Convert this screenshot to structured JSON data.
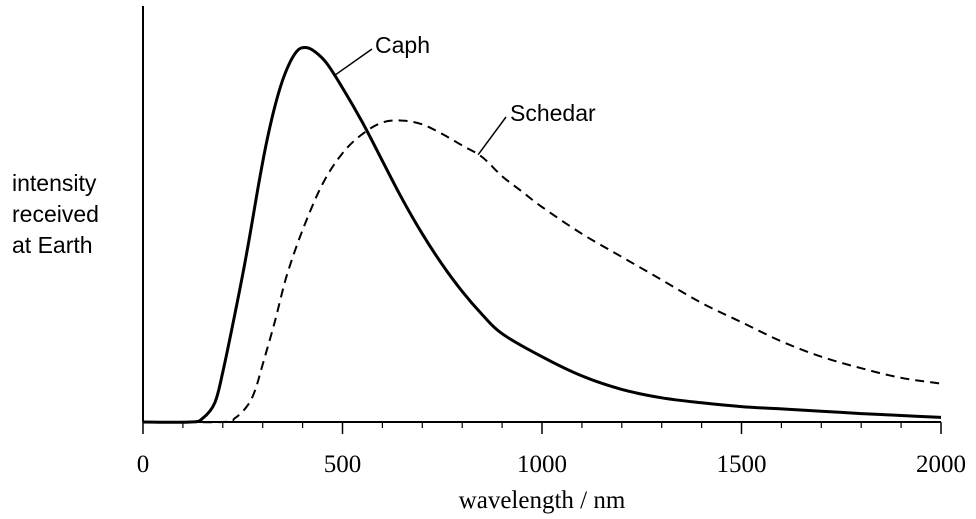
{
  "chart_data": {
    "type": "line",
    "xlabel": "wavelength / nm",
    "ylabel_lines": [
      "intensity",
      "received",
      "at Earth"
    ],
    "xlim": [
      0,
      2000
    ],
    "ylim": [
      0,
      1
    ],
    "xticks": [
      0,
      500,
      1000,
      1500,
      2000
    ],
    "xtick_labels": [
      "0",
      "500",
      "1000",
      "1500",
      "2000"
    ],
    "minor_tick_step": 100,
    "grid": false,
    "y_ticks_shown": false,
    "series": [
      {
        "name": "Caph",
        "style": "solid",
        "color": "#000000",
        "points": [
          [
            0,
            0
          ],
          [
            120,
            0
          ],
          [
            150,
            0.01
          ],
          [
            180,
            0.05
          ],
          [
            200,
            0.13
          ],
          [
            230,
            0.28
          ],
          [
            260,
            0.44
          ],
          [
            290,
            0.62
          ],
          [
            310,
            0.73
          ],
          [
            330,
            0.82
          ],
          [
            350,
            0.89
          ],
          [
            370,
            0.94
          ],
          [
            390,
            0.97
          ],
          [
            410,
            0.975
          ],
          [
            430,
            0.965
          ],
          [
            460,
            0.935
          ],
          [
            500,
            0.87
          ],
          [
            550,
            0.78
          ],
          [
            600,
            0.68
          ],
          [
            650,
            0.58
          ],
          [
            700,
            0.49
          ],
          [
            750,
            0.41
          ],
          [
            800,
            0.34
          ],
          [
            850,
            0.28
          ],
          [
            900,
            0.23
          ],
          [
            1000,
            0.17
          ],
          [
            1100,
            0.12
          ],
          [
            1200,
            0.085
          ],
          [
            1300,
            0.063
          ],
          [
            1400,
            0.05
          ],
          [
            1500,
            0.04
          ],
          [
            1600,
            0.034
          ],
          [
            1700,
            0.028
          ],
          [
            1800,
            0.022
          ],
          [
            1900,
            0.017
          ],
          [
            2000,
            0.012
          ]
        ]
      },
      {
        "name": "Schedar",
        "style": "dashed",
        "color": "#000000",
        "points": [
          [
            0,
            0
          ],
          [
            200,
            0
          ],
          [
            230,
            0.01
          ],
          [
            260,
            0.04
          ],
          [
            280,
            0.08
          ],
          [
            300,
            0.15
          ],
          [
            330,
            0.26
          ],
          [
            360,
            0.38
          ],
          [
            400,
            0.5
          ],
          [
            450,
            0.62
          ],
          [
            500,
            0.7
          ],
          [
            550,
            0.75
          ],
          [
            600,
            0.78
          ],
          [
            650,
            0.785
          ],
          [
            700,
            0.775
          ],
          [
            750,
            0.75
          ],
          [
            800,
            0.72
          ],
          [
            850,
            0.69
          ],
          [
            900,
            0.64
          ],
          [
            950,
            0.6
          ],
          [
            1000,
            0.56
          ],
          [
            1100,
            0.49
          ],
          [
            1200,
            0.43
          ],
          [
            1300,
            0.37
          ],
          [
            1400,
            0.31
          ],
          [
            1500,
            0.26
          ],
          [
            1600,
            0.21
          ],
          [
            1700,
            0.17
          ],
          [
            1800,
            0.14
          ],
          [
            1900,
            0.115
          ],
          [
            2000,
            0.1
          ]
        ]
      }
    ],
    "annotations": [
      {
        "text": "Caph",
        "series": "Caph"
      },
      {
        "text": "Schedar",
        "series": "Schedar"
      }
    ]
  }
}
